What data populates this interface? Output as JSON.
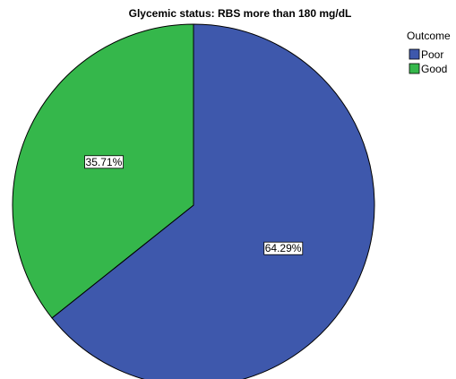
{
  "chart_data": {
    "type": "pie",
    "title": "Glycemic status: RBS more than 180 mg/dL",
    "legend_title": "Outcome",
    "legend_position": "top-right",
    "slices": [
      {
        "label": "Poor",
        "value": 64.29,
        "value_label": "64.29%",
        "color": "#3e58ac"
      },
      {
        "label": "Good",
        "value": 35.71,
        "value_label": "35.71%",
        "color": "#35b74b"
      }
    ]
  }
}
